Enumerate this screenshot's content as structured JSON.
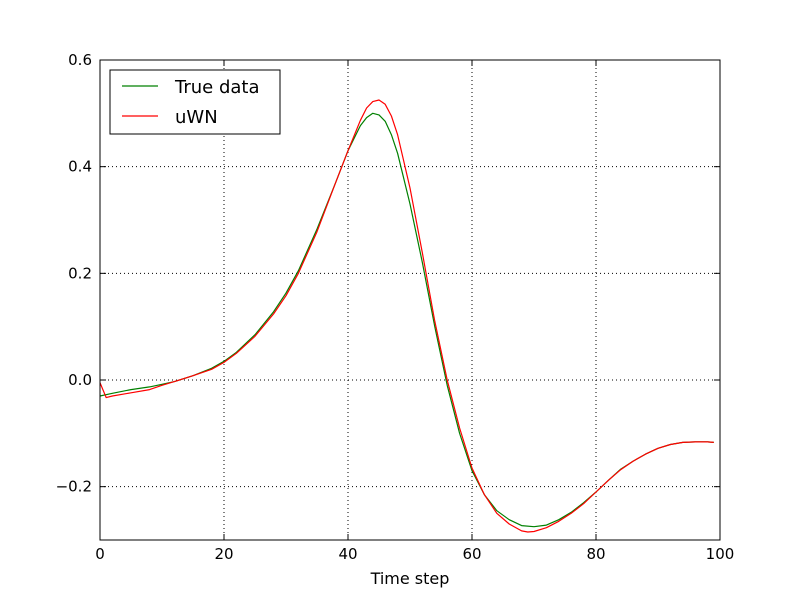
{
  "chart_data": {
    "type": "line",
    "title": "",
    "xlabel": "Time step",
    "ylabel": "",
    "xlim": [
      0,
      100
    ],
    "ylim": [
      -0.3,
      0.6
    ],
    "xticks": [
      0,
      20,
      40,
      60,
      80,
      100
    ],
    "xtick_labels": [
      "0",
      "20",
      "40",
      "60",
      "80",
      "100"
    ],
    "yticks": [
      -0.2,
      0.0,
      0.2,
      0.4,
      0.6
    ],
    "ytick_labels": [
      "−0.2",
      "0.0",
      "0.2",
      "0.4",
      "0.6"
    ],
    "grid": true,
    "legend_position": "top-left",
    "series": [
      {
        "name": "True data",
        "color": "#008000",
        "x": [
          0,
          2,
          5,
          8,
          10,
          12,
          15,
          18,
          20,
          22,
          25,
          28,
          30,
          32,
          35,
          38,
          40,
          42,
          43,
          44,
          45,
          46,
          47,
          48,
          50,
          52,
          54,
          56,
          58,
          60,
          62,
          64,
          66,
          68,
          70,
          72,
          74,
          76,
          78,
          80,
          82,
          84,
          86,
          88,
          90,
          92,
          94,
          96,
          98,
          99
        ],
        "y": [
          -0.03,
          -0.025,
          -0.018,
          -0.013,
          -0.008,
          -0.003,
          0.008,
          0.022,
          0.035,
          0.052,
          0.085,
          0.128,
          0.163,
          0.205,
          0.283,
          0.37,
          0.43,
          0.477,
          0.492,
          0.5,
          0.497,
          0.485,
          0.46,
          0.425,
          0.33,
          0.22,
          0.1,
          -0.01,
          -0.1,
          -0.17,
          -0.215,
          -0.245,
          -0.262,
          -0.273,
          -0.275,
          -0.272,
          -0.262,
          -0.248,
          -0.23,
          -0.21,
          -0.188,
          -0.167,
          -0.152,
          -0.139,
          -0.128,
          -0.121,
          -0.117,
          -0.116,
          -0.116,
          -0.117
        ]
      },
      {
        "name": "uWN",
        "color": "#ff0000",
        "x": [
          0,
          1,
          2,
          5,
          8,
          10,
          12,
          15,
          18,
          20,
          22,
          25,
          28,
          30,
          32,
          35,
          38,
          40,
          42,
          43,
          44,
          45,
          46,
          47,
          48,
          50,
          52,
          54,
          56,
          58,
          60,
          62,
          64,
          66,
          68,
          69,
          70,
          72,
          74,
          76,
          78,
          80,
          82,
          84,
          86,
          88,
          90,
          92,
          94,
          96,
          98,
          99
        ],
        "y": [
          -0.005,
          -0.033,
          -0.03,
          -0.024,
          -0.018,
          -0.01,
          -0.003,
          0.008,
          0.02,
          0.033,
          0.05,
          0.082,
          0.124,
          0.158,
          0.2,
          0.278,
          0.37,
          0.43,
          0.487,
          0.51,
          0.522,
          0.525,
          0.517,
          0.495,
          0.46,
          0.36,
          0.238,
          0.11,
          0.0,
          -0.09,
          -0.165,
          -0.215,
          -0.25,
          -0.27,
          -0.283,
          -0.285,
          -0.284,
          -0.277,
          -0.265,
          -0.25,
          -0.232,
          -0.21,
          -0.188,
          -0.168,
          -0.152,
          -0.139,
          -0.128,
          -0.121,
          -0.117,
          -0.116,
          -0.116,
          -0.117
        ]
      }
    ]
  }
}
